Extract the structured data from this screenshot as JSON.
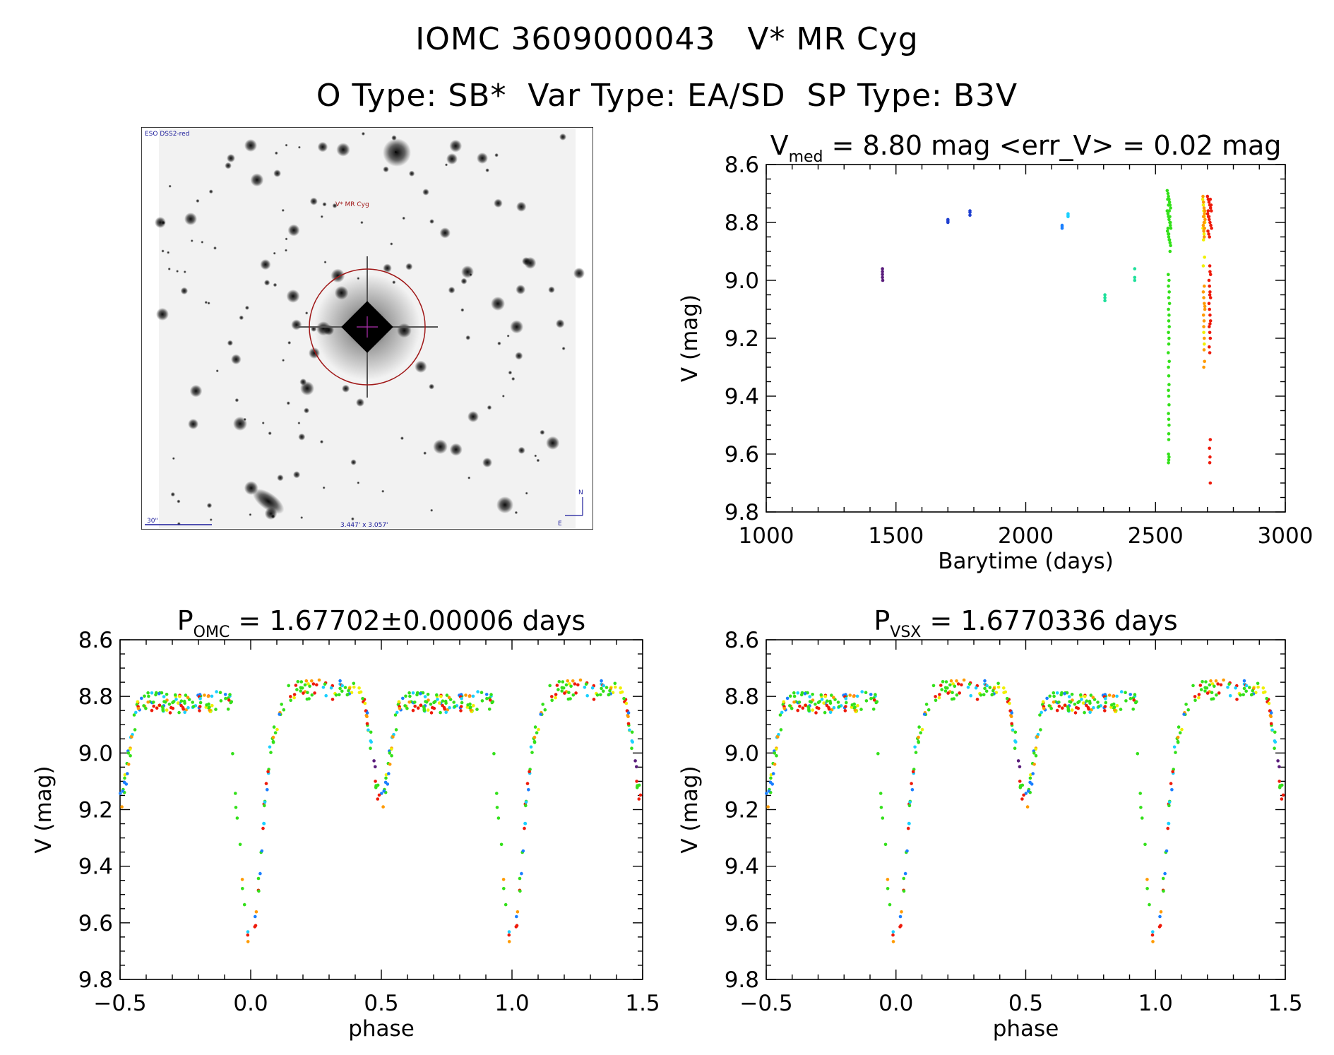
{
  "header": {
    "line1": "IOMC 3609000043   V* MR Cyg",
    "line2": "O Type: SB*  Var Type: EA/SD  SP Type: B3V"
  },
  "finder": {
    "survey_label": "ESO DSS2-red",
    "target_label": "V* MR Cyg",
    "scale_label": "30\"",
    "size_label": "3.447' x 3.057'",
    "north_label": "N",
    "east_label": "E"
  },
  "colors": {
    "purple": "#5a1d7c",
    "blue": "#1e3fd0",
    "skyblue": "#1a7fff",
    "cyan": "#1ad0ff",
    "teal": "#1ee09a",
    "green": "#33e01a",
    "yellow": "#f0f000",
    "orange": "#ff9a00",
    "red": "#ee1a0a",
    "finder_circle": "#a01818",
    "finder_text": "#1a1a9a"
  },
  "chart_data": [
    {
      "type": "scatter",
      "title_main": "V",
      "title_sub": "med",
      "title_rest": " = 8.80 mag <err_V> = 0.02 mag",
      "xlabel": "Barytime (days)",
      "ylabel": "V (mag)",
      "xlim": [
        1000,
        3000
      ],
      "ylim": [
        9.8,
        8.6
      ],
      "xticks": [
        "1000",
        "1500",
        "2000",
        "2500",
        "3000"
      ],
      "yticks": [
        "8.6",
        "8.8",
        "9.0",
        "9.2",
        "9.4",
        "9.6",
        "9.8"
      ],
      "series": [
        {
          "color": "purple",
          "x": [
            1448,
            1448,
            1448,
            1448,
            1449
          ],
          "y": [
            8.96,
            8.97,
            8.98,
            8.99,
            9.0
          ]
        },
        {
          "color": "blue",
          "x": [
            1700,
            1700,
            1700,
            1785,
            1785,
            1785
          ],
          "y": [
            8.79,
            8.795,
            8.8,
            8.76,
            8.765,
            8.775
          ]
        },
        {
          "color": "skyblue",
          "x": [
            2140,
            2140,
            2140
          ],
          "y": [
            8.81,
            8.815,
            8.82
          ]
        },
        {
          "color": "cyan",
          "x": [
            2163,
            2163,
            2163
          ],
          "y": [
            8.77,
            8.775,
            8.78
          ]
        },
        {
          "color": "teal",
          "x": [
            2305,
            2305,
            2305,
            2420,
            2420,
            2420
          ],
          "y": [
            9.05,
            9.06,
            9.07,
            8.96,
            8.99,
            9.0
          ]
        },
        {
          "color": "green",
          "x": [
            2545,
            2548,
            2550,
            2552,
            2554,
            2556,
            2558,
            2545,
            2548,
            2550,
            2552,
            2555,
            2557,
            2559,
            2546,
            2549,
            2551,
            2553,
            2556,
            2558,
            2547,
            2550,
            2553,
            2555,
            2557,
            2548,
            2551,
            2554,
            2556,
            2549,
            2552,
            2550,
            2553,
            2551,
            2554,
            2550,
            2552,
            2551,
            2553,
            2550,
            2552,
            2551,
            2549,
            2553,
            2550,
            2551,
            2552,
            2550,
            2551,
            2552,
            2550,
            2551,
            2552,
            2551,
            2550,
            2552,
            2551,
            2550,
            2551
          ],
          "y": [
            8.69,
            8.7,
            8.71,
            8.72,
            8.73,
            8.74,
            8.75,
            8.76,
            8.77,
            8.78,
            8.79,
            8.8,
            8.81,
            8.82,
            8.83,
            8.84,
            8.85,
            8.86,
            8.87,
            8.88,
            8.72,
            8.74,
            8.76,
            8.78,
            8.8,
            8.82,
            8.84,
            8.86,
            8.9,
            8.98,
            9.0,
            9.02,
            9.04,
            9.06,
            9.08,
            9.1,
            9.12,
            9.14,
            9.16,
            9.18,
            9.2,
            9.22,
            9.25,
            9.28,
            9.3,
            9.33,
            9.36,
            9.38,
            9.4,
            9.43,
            9.46,
            9.48,
            9.5,
            9.53,
            9.6,
            9.61,
            9.62,
            9.63,
            9.55
          ]
        },
        {
          "color": "yellow",
          "x": [
            2682,
            2684,
            2686,
            2688,
            2690,
            2683,
            2687,
            2685,
            2689,
            2684,
            2686,
            2688
          ],
          "y": [
            8.72,
            8.74,
            8.76,
            8.78,
            8.8,
            8.82,
            8.84,
            8.86,
            8.92,
            8.95,
            9.18,
            9.22
          ]
        },
        {
          "color": "orange",
          "x": [
            2683,
            2685,
            2687,
            2689,
            2691,
            2684,
            2686,
            2688,
            2690,
            2685,
            2687,
            2689,
            2684,
            2686,
            2688,
            2690,
            2685,
            2687,
            2686,
            2688,
            2687,
            2689,
            2686,
            2688,
            2690
          ],
          "y": [
            8.71,
            8.73,
            8.75,
            8.77,
            8.79,
            8.81,
            8.83,
            8.85,
            8.76,
            8.78,
            8.8,
            8.82,
            9.04,
            9.06,
            9.08,
            9.1,
            9.12,
            9.14,
            9.16,
            9.2,
            9.24,
            9.28,
            9.3,
            9.02,
            9.09
          ]
        },
        {
          "color": "red",
          "x": [
            2700,
            2703,
            2706,
            2709,
            2712,
            2715,
            2701,
            2704,
            2707,
            2710,
            2713,
            2716,
            2702,
            2705,
            2708,
            2711,
            2714,
            2703,
            2706,
            2709,
            2712,
            2706,
            2708,
            2710,
            2712,
            2706,
            2708,
            2710,
            2712,
            2707,
            2709,
            2711,
            2707,
            2709,
            2711,
            2708,
            2710,
            2709,
            2711,
            2709,
            2710,
            2710
          ],
          "y": [
            8.71,
            8.72,
            8.73,
            8.74,
            8.75,
            8.76,
            8.77,
            8.78,
            8.79,
            8.8,
            8.81,
            8.82,
            8.83,
            8.84,
            8.85,
            8.72,
            8.74,
            8.76,
            8.78,
            8.95,
            8.98,
            9.0,
            9.02,
            9.04,
            9.06,
            9.08,
            9.1,
            9.12,
            9.14,
            9.16,
            9.18,
            9.2,
            9.23,
            9.25,
            9.55,
            9.58,
            9.61,
            9.63,
            9.7,
            9.05,
            8.97,
            9.15
          ]
        }
      ]
    },
    {
      "type": "scatter",
      "title_main": "P",
      "title_sub": "OMC",
      "title_rest": " = 1.67702±0.00006 days",
      "xlabel": "phase",
      "ylabel": "V (mag)",
      "xlim": [
        -0.5,
        1.5
      ],
      "ylim": [
        9.8,
        8.6
      ],
      "xticks": [
        "−0.5",
        "0.0",
        "0.5",
        "1.0",
        "1.5"
      ],
      "yticks": [
        "8.6",
        "8.8",
        "9.0",
        "9.2",
        "9.4",
        "9.6",
        "9.8"
      ]
    },
    {
      "type": "scatter",
      "title_main": "P",
      "title_sub": "VSX",
      "title_rest": " = 1.6770336 days",
      "xlabel": "phase",
      "ylabel": "V (mag)",
      "xlim": [
        -0.5,
        1.5
      ],
      "ylim": [
        9.8,
        8.6
      ],
      "xticks": [
        "−0.5",
        "0.0",
        "0.5",
        "1.0",
        "1.5"
      ],
      "yticks": [
        "8.6",
        "8.8",
        "9.0",
        "9.2",
        "9.4",
        "9.6",
        "9.8"
      ]
    }
  ]
}
